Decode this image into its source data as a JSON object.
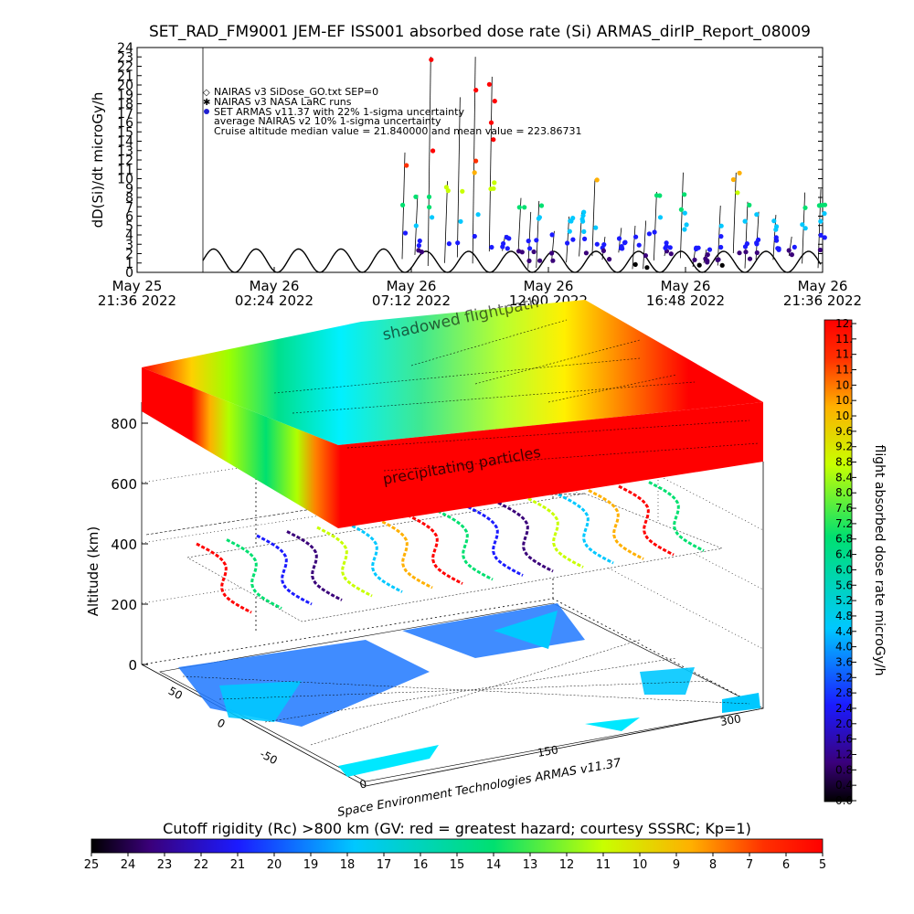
{
  "chart_data": [
    {
      "type": "scatter",
      "title": "SET_RAD_FM9001  JEM-EF ISS001 absorbed dose rate (Si) ARMAS_dirIP_Report_08009",
      "ylabel": "dD(Si)/dt microGy/h",
      "ylim": [
        0,
        24
      ],
      "yticks": [
        "0",
        "1",
        "2",
        "3",
        "4",
        "5",
        "6",
        "7",
        "8",
        "9",
        "10",
        "11",
        "12",
        "13",
        "14",
        "15",
        "16",
        "17",
        "18",
        "19",
        "20",
        "21",
        "22",
        "23",
        "24"
      ],
      "xticks": [
        {
          "line1": "May 25",
          "line2": "21:36 2022"
        },
        {
          "line1": "May 26",
          "line2": "02:24 2022"
        },
        {
          "line1": "May 26",
          "line2": "07:12 2022"
        },
        {
          "line1": "May 26",
          "line2": "12:00 2022"
        },
        {
          "line1": "May 26",
          "line2": "16:48 2022"
        },
        {
          "line1": "May 26",
          "line2": "21:36 2022"
        }
      ],
      "legend": [
        {
          "symbol": "diamond",
          "text": "NAIRAS v3 SiDose_GO.txt SEP=0"
        },
        {
          "symbol": "star",
          "text": "NAIRAS v3 NASA LaRC runs"
        },
        {
          "symbol": "dot",
          "text": "SET ARMAS v11.37 with 22% 1-sigma uncertainty"
        },
        {
          "symbol": "none",
          "text": "average NAIRAS v2 10% 1-sigma uncertainty"
        },
        {
          "symbol": "none",
          "text": "Cruise altitude median value = 21.840000 and mean value = 223.86731"
        }
      ],
      "series": [
        {
          "name": "NAIRAS v3 SiDose_GO.txt SEP=0",
          "description": "orbital oscillation 0-2.5 microGy/h, ~90 min period"
        },
        {
          "name": "SET ARMAS v11.37 with 22% 1-sigma uncertainty",
          "range": [
            0,
            24
          ]
        }
      ]
    },
    {
      "type": "heatmap",
      "zlabel": "Altitude (km)",
      "zticks": [
        "0",
        "200",
        "400",
        "600",
        "800"
      ],
      "lon_ticks": [
        "0",
        "150",
        "300"
      ],
      "lat_ticks": [
        "50",
        "0",
        "-50"
      ],
      "annotations": {
        "top": "shadowed flightpath",
        "middle": "precipitating particles",
        "credit": "Space Environment Technologies ARMAS v11.37"
      }
    },
    {
      "type": "colorbar",
      "label": "flight absorbed dose rate microGy/h",
      "ticks": [
        "0.0",
        "0.4",
        "0.8",
        "1.2",
        "1.6",
        "2.0",
        "2.4",
        "2.8",
        "3.2",
        "3.6",
        "4.0",
        "4.4",
        "4.8",
        "5.2",
        "5.6",
        "6.0",
        "6.4",
        "6.8",
        "7.2",
        "7.6",
        "8.0",
        "8.4",
        "8.8",
        "9.2",
        "9.6",
        "10.",
        "10.",
        "10.",
        "11.",
        "11.",
        "11.",
        "12."
      ]
    },
    {
      "type": "colorbar",
      "label": "Cutoff rigidity (Rc) >800 km (GV: red = greatest hazard; courtesy SSSRC; Kp=1)",
      "ticks": [
        "25",
        "24",
        "23",
        "22",
        "21",
        "20",
        "19",
        "18",
        "17",
        "16",
        "15",
        "14",
        "13",
        "12",
        "11",
        "10",
        "9",
        "8",
        "7",
        "6",
        "5"
      ]
    }
  ]
}
